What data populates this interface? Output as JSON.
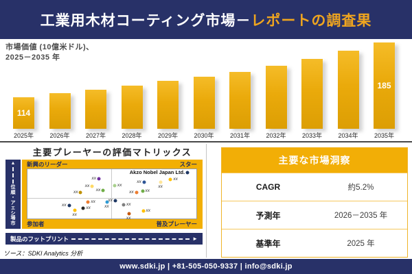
{
  "header": {
    "title_main": "工業用木材コーティング市場－",
    "title_accent": "レポートの調査果"
  },
  "chart": {
    "subtitle_line1": "市場価値 (10億米ドル)、",
    "subtitle_line2": "2025－2035 年"
  },
  "chart_data": [
    {
      "type": "bar",
      "title": "市場価値 (10億米ドル)、2025－2035 年",
      "ylabel": "市場価値 (10億米ドル)",
      "xlabel": "",
      "categories": [
        "2025年",
        "2026年",
        "2027年",
        "2028年",
        "2029年",
        "2030年",
        "2031年",
        "2032年",
        "2033年",
        "2034年",
        "2035年"
      ],
      "values": [
        114,
        119,
        124,
        129,
        135,
        141,
        147,
        155,
        164,
        174,
        185
      ],
      "value_labels_shown": {
        "2025年": 114,
        "2035年": 185
      },
      "bar_color": "#ECAC14",
      "grid": false,
      "y_axis_visible": false,
      "baseline_not_zero": true
    },
    {
      "type": "scatter",
      "title": "主要プレーヤーの評価マトリックス",
      "xlabel": "製品のフットプリント",
      "ylabel": "市場シェア・順位",
      "quadrant_labels": [
        "新興のリーダー",
        "スター",
        "参加者",
        "普及プレーヤー"
      ],
      "points": [
        {
          "x_pct": 42.3,
          "y_pct": 18.9,
          "color": "#7030A0",
          "label": "xx",
          "label_side": "left"
        },
        {
          "x_pct": 38.3,
          "y_pct": 35.1,
          "color": "#FFD966",
          "label": "xx",
          "label_side": "left"
        },
        {
          "x_pct": 31.5,
          "y_pct": 47.3,
          "color": "#BF9000",
          "label": "xx",
          "label_side": "left"
        },
        {
          "x_pct": 44.8,
          "y_pct": 43.2,
          "color": "#70AD47",
          "label": "xx",
          "label_side": "left"
        },
        {
          "x_pct": 94.8,
          "y_pct": 6.8,
          "color": "#1F3864",
          "label": "Akzo Nobel Japan Ltd.",
          "label_side": "left",
          "bold": true
        },
        {
          "x_pct": 51.6,
          "y_pct": 33.8,
          "color": "#A9D18E",
          "label": "xx",
          "label_side": "right"
        },
        {
          "x_pct": 69.0,
          "y_pct": 25.7,
          "color": "#2E5596",
          "label": "xx",
          "label_side": "left"
        },
        {
          "x_pct": 79.0,
          "y_pct": 27.0,
          "color": "#FFE699",
          "label": "xx",
          "label_side": "below"
        },
        {
          "x_pct": 84.7,
          "y_pct": 20.3,
          "color": "#FFC000",
          "label": "xx",
          "label_side": "right"
        },
        {
          "x_pct": 64.5,
          "y_pct": 47.3,
          "color": "#ED7D31",
          "label": "xx",
          "label_side": "left"
        },
        {
          "x_pct": 68.1,
          "y_pct": 44.6,
          "color": "#70AD47",
          "label": "xx",
          "label_side": "right"
        },
        {
          "x_pct": 35.9,
          "y_pct": 66.2,
          "color": "#ED7D31",
          "label": "xx",
          "label_side": "right"
        },
        {
          "x_pct": 47.2,
          "y_pct": 66.2,
          "color": "#2E9BD5",
          "label": "xx",
          "label_side": "below"
        },
        {
          "x_pct": 24.6,
          "y_pct": 73.0,
          "color": "#1F3864",
          "label": "xx",
          "label_side": "left"
        },
        {
          "x_pct": 33.1,
          "y_pct": 79.7,
          "color": "#262626",
          "label": "xx",
          "label_side": "right"
        },
        {
          "x_pct": 28.2,
          "y_pct": 83.8,
          "color": "#FFC000",
          "label": "xx",
          "label_side": "below"
        },
        {
          "x_pct": 52.0,
          "y_pct": 63.5,
          "color": "#1F3864",
          "label": "xx",
          "label_side": "left"
        },
        {
          "x_pct": 56.9,
          "y_pct": 71.6,
          "color": "#7F7F7F",
          "label": "xx",
          "label_side": "right"
        },
        {
          "x_pct": 60.1,
          "y_pct": 90.5,
          "color": "#C55A11",
          "label": "xx",
          "label_side": "below"
        },
        {
          "x_pct": 68.5,
          "y_pct": 85.1,
          "color": "#FFC000",
          "label": "xx",
          "label_side": "right"
        }
      ]
    }
  ],
  "matrix": {
    "title": "主要プレーヤーの評価マトリックス",
    "top_left": "新興のリーダー",
    "top_right": "スター",
    "bottom_left": "参加者",
    "bottom_right": "普及プレーヤー",
    "y_axis": "市場シェア・順位",
    "x_axis": "製品のフットプリント",
    "y_arrow": "▲",
    "x_arrow": "►"
  },
  "insights": {
    "title": "主要な市場洞察",
    "rows": [
      {
        "label": "CAGR",
        "value": "約5.2%"
      },
      {
        "label": "予測年",
        "value": "2026－2035 年"
      },
      {
        "label": "基準年",
        "value": "2025 年"
      }
    ]
  },
  "source": "ソース：SDKI Analytics 分析",
  "footer": "www.sdki.jp | +81-505-050-9337 | info@sdki.jp",
  "colors": {
    "navy": "#283168",
    "gold_band": "#F2AF04",
    "bar_gold": "#ECAC14",
    "accent_title": "#EFA51F"
  }
}
